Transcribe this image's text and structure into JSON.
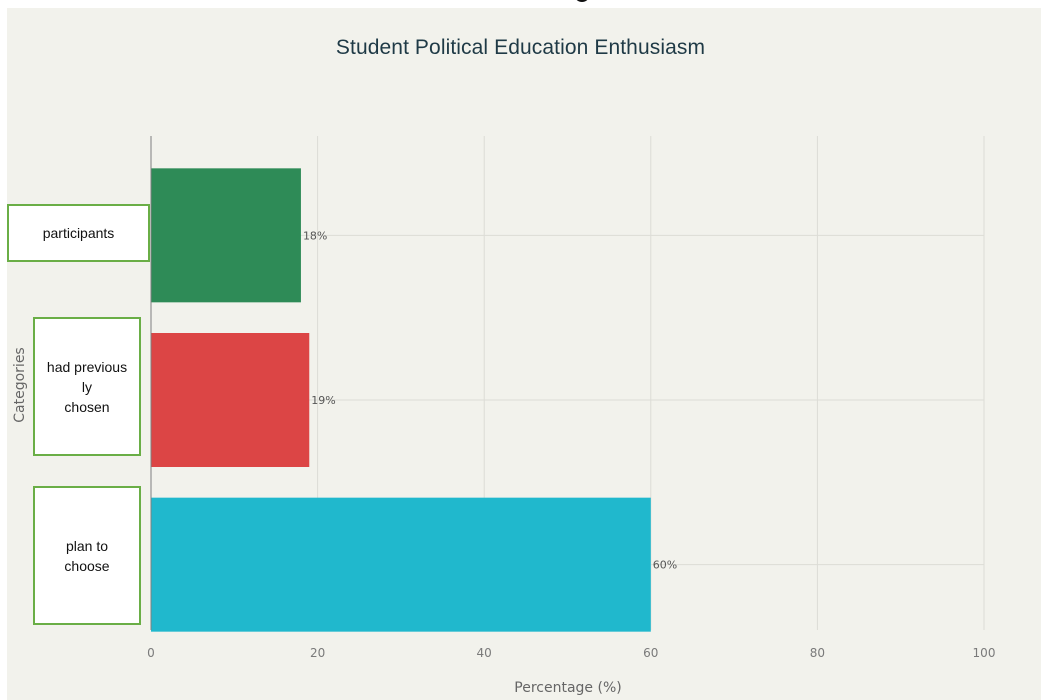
{
  "chart_data": {
    "type": "bar",
    "orientation": "horizontal",
    "title": "Student Political Education Enthusiasm",
    "xlabel": "Percentage (%)",
    "ylabel": "Categories",
    "xlim": [
      0,
      100
    ],
    "xticks": [
      0,
      20,
      40,
      60,
      80,
      100
    ],
    "grid": true,
    "categories": [
      "participants",
      "had previous\nly\nchosen",
      "plan to\nchoose"
    ],
    "values": [
      18,
      19,
      60
    ],
    "data_labels": [
      "18%",
      "19%",
      "60%"
    ],
    "colors": [
      "#2e8b57",
      "#dc4545",
      "#20b8cd"
    ]
  }
}
